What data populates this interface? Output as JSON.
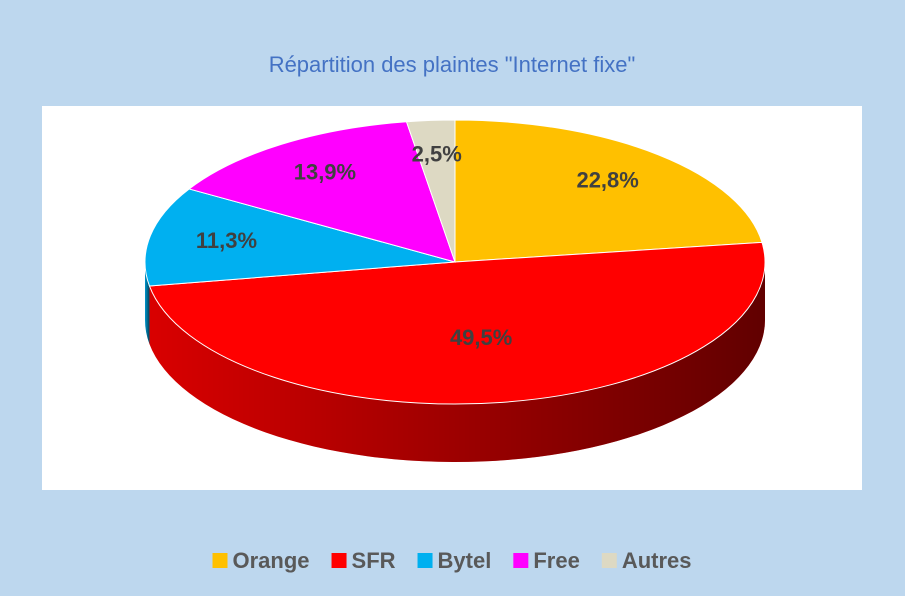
{
  "chart_data": {
    "type": "pie",
    "title": "Répartition des plaintes \"Internet fixe\"",
    "categories": [
      "Orange",
      "SFR",
      "Bytel",
      "Free",
      "Autres"
    ],
    "values": [
      22.8,
      49.5,
      11.3,
      13.9,
      2.5
    ],
    "value_labels": [
      "22,8%",
      "49,5%",
      "11,3%",
      "13,9%",
      "2,5%"
    ],
    "colors": [
      "#ffc000",
      "#ff0000",
      "#00b0f0",
      "#ff00ff",
      "#ddd9c3"
    ],
    "legend": "bottom"
  }
}
